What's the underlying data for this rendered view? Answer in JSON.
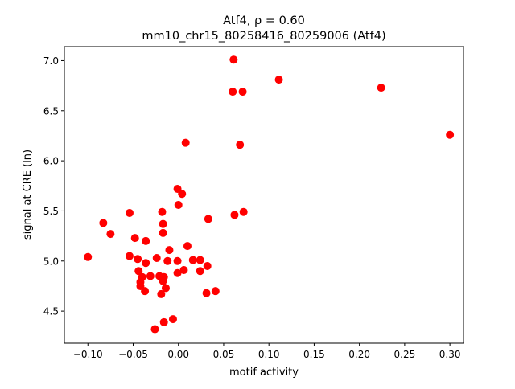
{
  "chart_data": {
    "type": "scatter",
    "title": "Atf4, ρ = 0.60",
    "subtitle": "mm10_chr15_80258416_80259006 (Atf4)",
    "xlabel": "motif activity",
    "ylabel": "signal at CRE (ln)",
    "xlim": [
      -0.126,
      0.315
    ],
    "ylim": [
      4.18,
      7.14
    ],
    "xticks": [
      "−0.10",
      "−0.05",
      "0.00",
      "0.05",
      "0.10",
      "0.15",
      "0.20",
      "0.25",
      "0.30"
    ],
    "xtick_values": [
      -0.1,
      -0.05,
      0,
      0.05,
      0.1,
      0.15,
      0.2,
      0.25,
      0.3
    ],
    "yticks": [
      "4.5",
      "5.0",
      "5.5",
      "6.0",
      "6.5",
      "7.0"
    ],
    "ytick_values": [
      4.5,
      5.0,
      5.5,
      6.0,
      6.5,
      7.0
    ],
    "grid": false,
    "marker_color": "#ff0000",
    "points": [
      [
        -0.001,
        5.72
      ],
      [
        0.004,
        5.67
      ],
      [
        0.0,
        5.56
      ],
      [
        -0.054,
        5.48
      ],
      [
        -0.018,
        5.49
      ],
      [
        -0.083,
        5.38
      ],
      [
        -0.017,
        5.37
      ],
      [
        0.033,
        5.42
      ],
      [
        0.062,
        5.46
      ],
      [
        0.072,
        5.49
      ],
      [
        -0.075,
        5.27
      ],
      [
        -0.017,
        5.28
      ],
      [
        -0.048,
        5.23
      ],
      [
        -0.036,
        5.2
      ],
      [
        -0.1,
        5.04
      ],
      [
        -0.054,
        5.05
      ],
      [
        -0.045,
        5.02
      ],
      [
        -0.036,
        4.98
      ],
      [
        -0.024,
        5.03
      ],
      [
        -0.01,
        5.11
      ],
      [
        0.01,
        5.15
      ],
      [
        -0.012,
        5.0
      ],
      [
        -0.001,
        5.0
      ],
      [
        0.016,
        5.01
      ],
      [
        0.024,
        5.01
      ],
      [
        0.032,
        4.95
      ],
      [
        -0.044,
        4.9
      ],
      [
        0.006,
        4.91
      ],
      [
        -0.001,
        4.88
      ],
      [
        0.024,
        4.9
      ],
      [
        -0.04,
        4.84
      ],
      [
        -0.031,
        4.85
      ],
      [
        -0.021,
        4.85
      ],
      [
        -0.016,
        4.84
      ],
      [
        -0.042,
        4.79
      ],
      [
        -0.017,
        4.8
      ],
      [
        -0.042,
        4.75
      ],
      [
        -0.014,
        4.73
      ],
      [
        -0.037,
        4.7
      ],
      [
        -0.019,
        4.67
      ],
      [
        0.031,
        4.68
      ],
      [
        0.041,
        4.7
      ],
      [
        -0.006,
        4.42
      ],
      [
        -0.016,
        4.39
      ],
      [
        -0.026,
        4.32
      ],
      [
        0.06,
        6.69
      ],
      [
        0.071,
        6.69
      ],
      [
        0.061,
        7.01
      ],
      [
        0.111,
        6.81
      ],
      [
        0.224,
        6.73
      ],
      [
        0.3,
        6.26
      ],
      [
        0.068,
        6.16
      ],
      [
        0.008,
        6.18
      ]
    ]
  }
}
